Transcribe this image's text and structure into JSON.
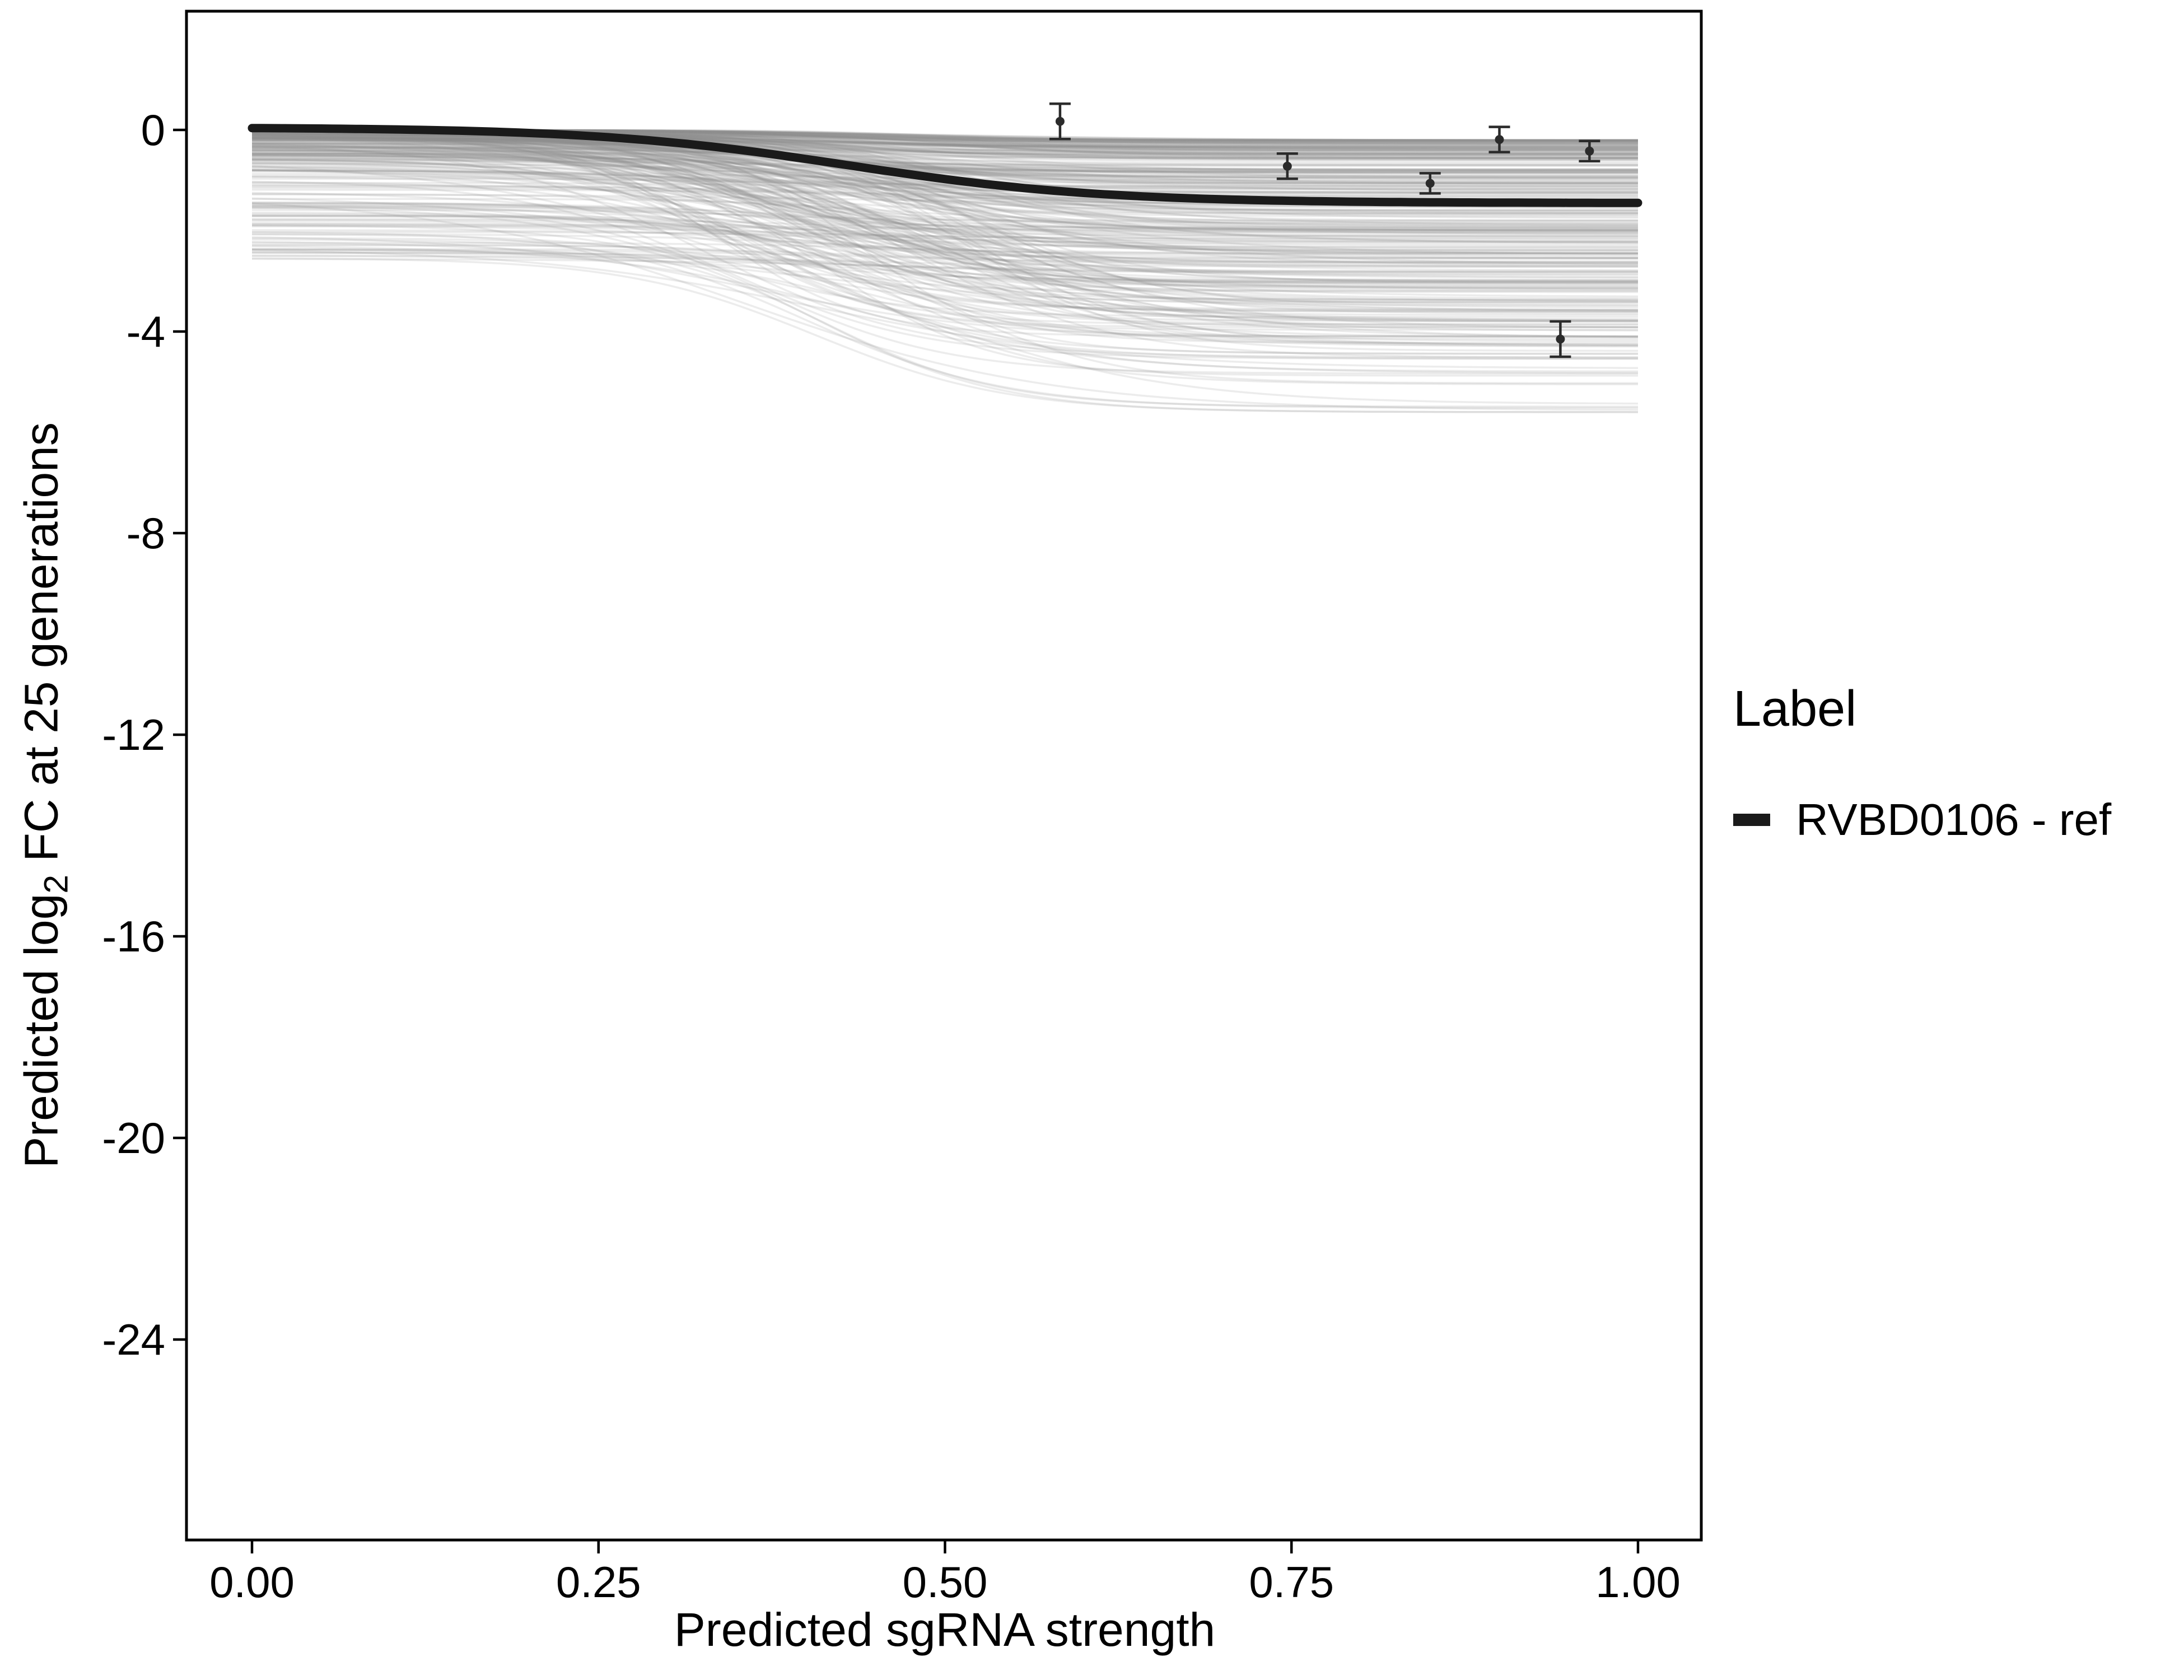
{
  "chart_data": {
    "type": "line",
    "title": "",
    "xlabel": "Predicted sgRNA strength",
    "ylabel": {
      "pre": "Predicted  log",
      "sub": "2",
      "post": " FC at 25 generations"
    },
    "x_ticks": {
      "values": [
        0,
        0.25,
        0.5,
        0.75,
        1.0
      ],
      "labels": [
        "0.00",
        "0.25",
        "0.50",
        "0.75",
        "1.00"
      ]
    },
    "y_ticks": {
      "values": [
        0,
        -4,
        -8,
        -12,
        -16,
        -20,
        -24
      ],
      "labels": [
        "0",
        "-4",
        "-8",
        "-12",
        "-16",
        "-20",
        "-24"
      ]
    },
    "xlim": [
      -0.047,
      1.046
    ],
    "ylim": [
      -28,
      2.4
    ],
    "grid": "off",
    "legend_position": "right",
    "legend": {
      "title": "Label",
      "entries": [
        {
          "label": "RVBD0106 - ref",
          "color": "#1a1a1a",
          "marker": "thick-line"
        }
      ]
    },
    "ref_curve": {
      "name": "RVBD0106 - ref",
      "color": "#1a1a1a",
      "stroke_width": 15,
      "shape": {
        "model": "sigmoid",
        "top": 0.05,
        "bottom": -1.45,
        "x0": 0.43,
        "k": 11
      }
    },
    "ensemble": {
      "description": "background posterior/alternative fit curves",
      "count": 350,
      "color": "#8c8c8c",
      "opacity": 0.17,
      "stroke_width": 3.5,
      "seed": 42,
      "model": "sigmoid",
      "top_max": -2.6,
      "drop_base": 0.2,
      "drop_span": 4.3,
      "x0_range": [
        0.32,
        0.52
      ],
      "k_range": [
        9,
        19
      ],
      "min_bottom": -5.6
    },
    "points": [
      {
        "x": 0.583,
        "y": 0.17,
        "err": 0.35
      },
      {
        "x": 0.747,
        "y": -0.72,
        "err": 0.25
      },
      {
        "x": 0.85,
        "y": -1.06,
        "err": 0.2
      },
      {
        "x": 0.9,
        "y": -0.19,
        "err": 0.25
      },
      {
        "x": 0.965,
        "y": -0.42,
        "err": 0.2
      },
      {
        "x": 0.944,
        "y": -4.15,
        "err": 0.35
      }
    ],
    "point_style": {
      "color": "#2b2b2b",
      "radius": 8,
      "errorbar_cap_halfwidth": 19,
      "errorbar_stroke": 4.5
    }
  }
}
